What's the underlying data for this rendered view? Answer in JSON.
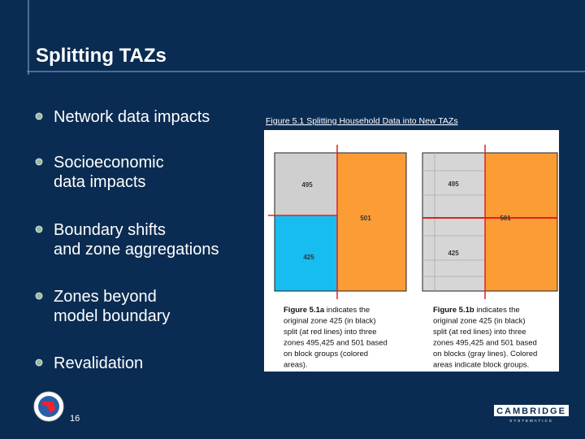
{
  "header": {
    "title": "Splitting TAZs"
  },
  "bullets": [
    [
      "Network data impacts"
    ],
    [
      "Socioeconomic",
      "data impacts"
    ],
    [
      "Boundary shifts",
      "and zone aggregations"
    ],
    [
      "Zones beyond",
      "model boundary"
    ],
    [
      "Revalidation"
    ]
  ],
  "figure": {
    "title": "Figure 5.1  Splitting Household Data into New TAZs",
    "panels": [
      {
        "labels": [
          "495",
          "501",
          "425"
        ],
        "caption_label": "Figure 5.1a",
        "caption_lines": [
          " indicates the",
          "original zone 425 (in black)",
          "split (at red lines) into three",
          "zones 495,425 and 501 based",
          "on block groups (colored",
          "areas)."
        ]
      },
      {
        "labels": [
          "495",
          "501",
          "425"
        ],
        "caption_label": "Figure 5.1b",
        "caption_lines": [
          " indicates the",
          "original zone 425 (in black)",
          "split (at red lines) into three",
          "zones 495,425 and 501 based",
          "on blocks (gray lines). Colored",
          "areas indicate block groups."
        ]
      }
    ]
  },
  "footer": {
    "page_number": "16",
    "logo_name": "CAMBRIDGE",
    "logo_sub": "SYSTEMATICS"
  }
}
